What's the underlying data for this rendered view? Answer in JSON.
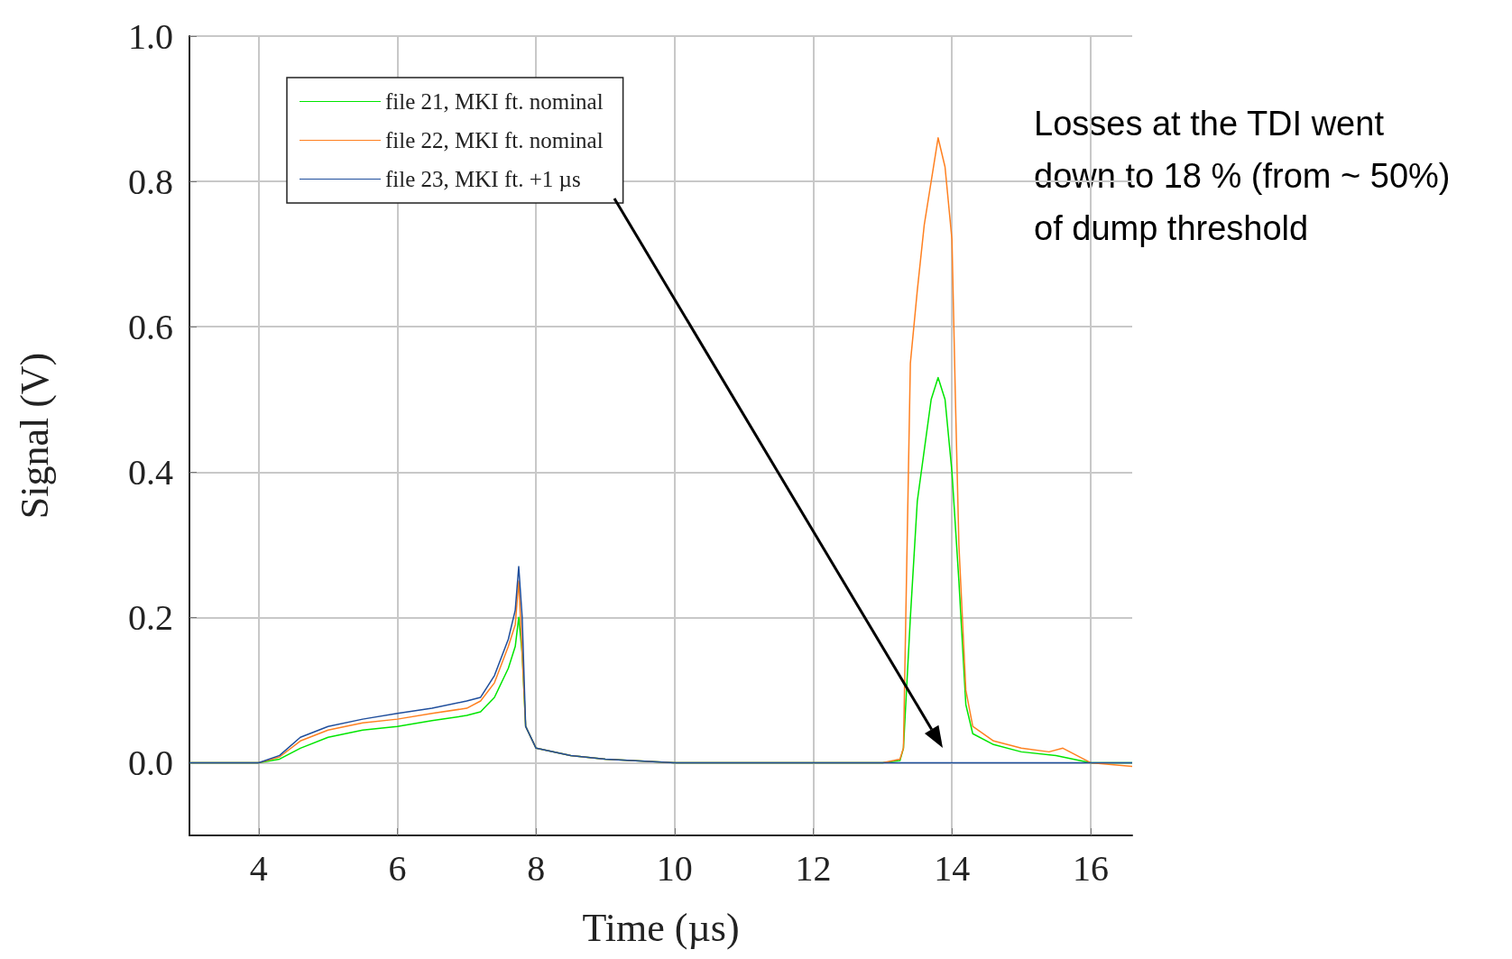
{
  "chart_data": {
    "type": "line",
    "xlabel": "Time (µs)",
    "ylabel": "Signal (V)",
    "xlim": [
      3,
      16.6
    ],
    "ylim": [
      -0.1,
      1.0
    ],
    "xticks": [
      4,
      6,
      8,
      10,
      12,
      14,
      16
    ],
    "yticks": [
      {
        "value": 0,
        "label": "0.0"
      },
      0.2,
      0.4,
      0.6,
      0.8,
      {
        "value": 1,
        "label": "1.0"
      }
    ],
    "grid": true,
    "legend": "top left",
    "marker": "none",
    "line_style": "solid",
    "series": [
      {
        "name": "file 21, MKI ft. nominal",
        "color": "#00e600",
        "x": [
          3,
          3.5,
          4,
          4.3,
          4.6,
          5,
          5.5,
          6,
          6.5,
          7,
          7.2,
          7.4,
          7.6,
          7.7,
          7.75,
          7.8,
          7.85,
          8,
          8.5,
          9,
          10,
          11,
          12,
          13,
          13.25,
          13.3,
          13.4,
          13.5,
          13.6,
          13.7,
          13.8,
          13.9,
          14,
          14.1,
          14.2,
          14.3,
          14.6,
          15,
          15.5,
          16,
          16.6
        ],
        "values": [
          0,
          0,
          0,
          0.005,
          0.02,
          0.035,
          0.045,
          0.05,
          0.058,
          0.065,
          0.07,
          0.09,
          0.13,
          0.16,
          0.2,
          0.15,
          0.05,
          0.02,
          0.01,
          0.005,
          0,
          0,
          0,
          0,
          0.003,
          0.02,
          0.2,
          0.36,
          0.43,
          0.5,
          0.53,
          0.5,
          0.4,
          0.25,
          0.08,
          0.04,
          0.025,
          0.015,
          0.01,
          0,
          0
        ]
      },
      {
        "name": "file 22, MKI ft. nominal",
        "color": "#ff8020",
        "x": [
          3,
          3.5,
          4,
          4.3,
          4.6,
          5,
          5.5,
          6,
          6.5,
          7,
          7.2,
          7.4,
          7.6,
          7.7,
          7.75,
          7.8,
          7.85,
          8,
          8.5,
          9,
          10,
          11,
          12,
          13,
          13.25,
          13.3,
          13.4,
          13.5,
          13.6,
          13.7,
          13.8,
          13.9,
          14,
          14.05,
          14.1,
          14.2,
          14.3,
          14.6,
          15,
          15.4,
          15.6,
          16,
          16.6
        ],
        "values": [
          0,
          0,
          0,
          0.008,
          0.03,
          0.045,
          0.055,
          0.06,
          0.068,
          0.075,
          0.085,
          0.11,
          0.16,
          0.19,
          0.25,
          0.15,
          0.05,
          0.02,
          0.01,
          0.005,
          0,
          0,
          0,
          0,
          0.005,
          0.02,
          0.55,
          0.65,
          0.74,
          0.8,
          0.86,
          0.82,
          0.72,
          0.5,
          0.3,
          0.1,
          0.05,
          0.03,
          0.02,
          0.015,
          0.02,
          0,
          -0.005
        ]
      },
      {
        "name": "file 23, MKI ft. +1 µs",
        "color": "#1f4e9c",
        "x": [
          3,
          3.5,
          4,
          4.3,
          4.6,
          5,
          5.5,
          6,
          6.5,
          7,
          7.2,
          7.4,
          7.6,
          7.7,
          7.75,
          7.8,
          7.85,
          8,
          8.5,
          9,
          10,
          11,
          12,
          13,
          14,
          15,
          16,
          16.6
        ],
        "values": [
          0,
          0,
          0,
          0.01,
          0.035,
          0.05,
          0.06,
          0.068,
          0.075,
          0.085,
          0.09,
          0.12,
          0.17,
          0.21,
          0.27,
          0.2,
          0.05,
          0.02,
          0.01,
          0.005,
          0,
          0,
          0,
          0,
          0,
          0,
          0,
          0
        ]
      }
    ],
    "annotations": [
      "Losses at the TDI went\ndown to 18 % (from ~ 50%)\nof dump threshold"
    ]
  }
}
